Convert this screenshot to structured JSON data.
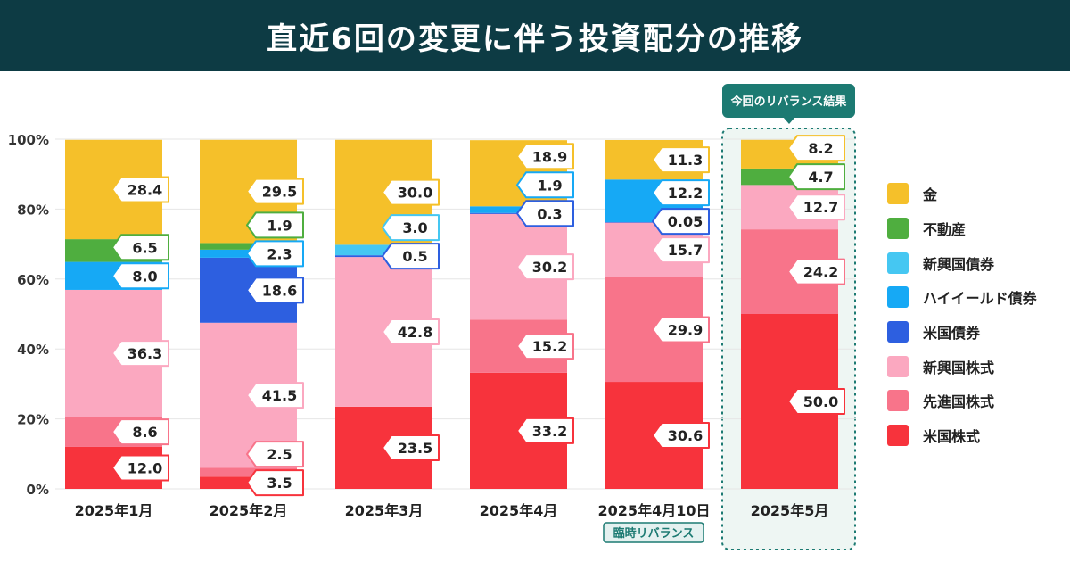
{
  "title": "直近6回の変更に伴う投資配分の推移",
  "highlight_badge": "今回のリバランス結果",
  "special_badge": "臨時リバランス",
  "colors": {
    "header_bg": "#0d3b44",
    "highlight": "#1c7a72",
    "us_stock": "#f7333c",
    "dev_stock": "#f8748a",
    "em_stock": "#fba8c0",
    "us_bond": "#2d5fe0",
    "hy_bond": "#16a9f5",
    "em_bond": "#45c7f2",
    "reit": "#4fae3f",
    "gold": "#f5c02a"
  },
  "legend": [
    {
      "key": "gold",
      "label": "金",
      "color": "#f5c02a"
    },
    {
      "key": "reit",
      "label": "不動産",
      "color": "#4fae3f"
    },
    {
      "key": "em_bond",
      "label": "新興国債券",
      "color": "#45c7f2"
    },
    {
      "key": "hy_bond",
      "label": "ハイイールド債券",
      "color": "#16a9f5"
    },
    {
      "key": "us_bond",
      "label": "米国債券",
      "color": "#2d5fe0"
    },
    {
      "key": "em_stock",
      "label": "新興国株式",
      "color": "#fba8c0"
    },
    {
      "key": "dev_stock",
      "label": "先進国株式",
      "color": "#f8748a"
    },
    {
      "key": "us_stock",
      "label": "米国株式",
      "color": "#f7333c"
    }
  ],
  "chart_data": {
    "type": "bar",
    "stacked": true,
    "title": "直近6回の変更に伴う投資配分の推移",
    "categories": [
      "2025年1月",
      "2025年2月",
      "2025年3月",
      "2025年4月",
      "2025年4月10日",
      "2025年5月"
    ],
    "y_ticks": [
      "0%",
      "20%",
      "40%",
      "60%",
      "80%",
      "100%"
    ],
    "ylim": [
      0,
      100
    ],
    "highlighted_category": "2025年5月",
    "annotated_category": "2025年4月10日",
    "stack_order": [
      "us_stock",
      "dev_stock",
      "em_stock",
      "us_bond",
      "hy_bond",
      "em_bond",
      "reit",
      "gold"
    ],
    "series": [
      {
        "key": "us_stock",
        "name": "米国株式",
        "values": [
          12.0,
          3.5,
          23.5,
          33.2,
          30.6,
          50.0
        ],
        "labels": [
          "12.0",
          "3.5",
          "23.5",
          "33.2",
          "30.6",
          "50.0"
        ]
      },
      {
        "key": "dev_stock",
        "name": "先進国株式",
        "values": [
          8.6,
          2.5,
          0,
          15.2,
          29.9,
          24.2
        ],
        "labels": [
          "8.6",
          "2.5",
          "",
          "15.2",
          "29.9",
          "24.2"
        ]
      },
      {
        "key": "em_stock",
        "name": "新興国株式",
        "values": [
          36.3,
          41.5,
          42.8,
          30.2,
          15.7,
          12.7
        ],
        "labels": [
          "36.3",
          "41.5",
          "42.8",
          "30.2",
          "15.7",
          "12.7"
        ]
      },
      {
        "key": "us_bond",
        "name": "米国債券",
        "values": [
          0,
          18.6,
          0.5,
          0.3,
          0.05,
          0
        ],
        "labels": [
          "",
          "18.6",
          "0.5",
          "0.3",
          "0.05",
          ""
        ]
      },
      {
        "key": "hy_bond",
        "name": "ハイイールド債券",
        "values": [
          8.0,
          2.3,
          0,
          1.9,
          12.2,
          0
        ],
        "labels": [
          "8.0",
          "2.3",
          "",
          "1.9",
          "12.2",
          ""
        ]
      },
      {
        "key": "em_bond",
        "name": "新興国債券",
        "values": [
          0,
          0,
          3.0,
          0,
          0,
          0
        ],
        "labels": [
          "",
          "",
          "3.0",
          "",
          "",
          ""
        ]
      },
      {
        "key": "reit",
        "name": "不動産",
        "values": [
          6.5,
          1.9,
          0,
          0,
          0,
          4.7
        ],
        "labels": [
          "6.5",
          "1.9",
          "",
          "",
          "",
          "4.7"
        ]
      },
      {
        "key": "gold",
        "name": "金",
        "values": [
          28.4,
          29.5,
          30.0,
          18.9,
          11.3,
          8.2
        ],
        "labels": [
          "28.4",
          "29.5",
          "30.0",
          "18.9",
          "11.3",
          "8.2"
        ]
      }
    ]
  }
}
